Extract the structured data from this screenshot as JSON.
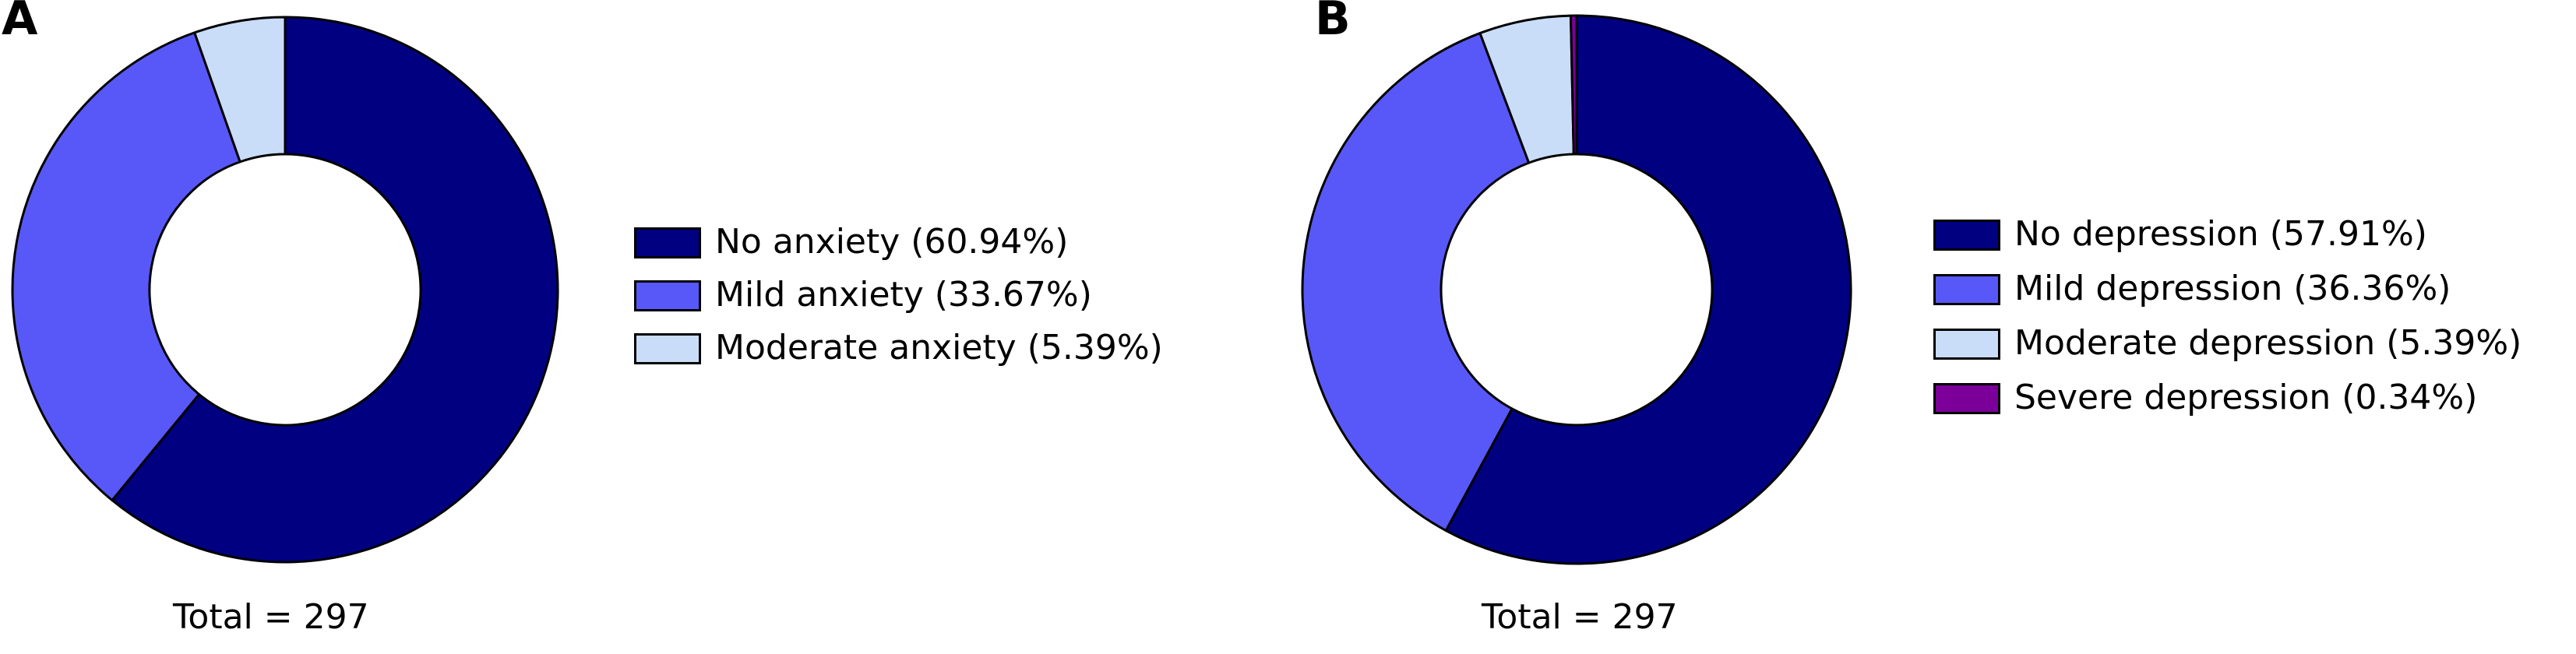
{
  "chart_data": [
    {
      "type": "pie",
      "panel_label": "A",
      "total_label": "Total = 297",
      "slices": [
        {
          "label": "No anxiety (60.94%)",
          "value": 60.94,
          "color": "#000080"
        },
        {
          "label": "Mild anxiety (33.67%)",
          "value": 33.67,
          "color": "#5858F8"
        },
        {
          "label": "Moderate anxiety (5.39%)",
          "value": 5.39,
          "color": "#C9DDF8"
        }
      ]
    },
    {
      "type": "pie",
      "panel_label": "B",
      "total_label": "Total = 297",
      "slices": [
        {
          "label": "No depression (57.91%)",
          "value": 57.91,
          "color": "#000080"
        },
        {
          "label": "Mild depression (36.36%)",
          "value": 36.36,
          "color": "#5858F8"
        },
        {
          "label": "Moderate depression (5.39%)",
          "value": 5.39,
          "color": "#C9DDF8"
        },
        {
          "label": "Severe depression (0.34%)",
          "value": 0.34,
          "color": "#7B0099"
        }
      ]
    }
  ]
}
